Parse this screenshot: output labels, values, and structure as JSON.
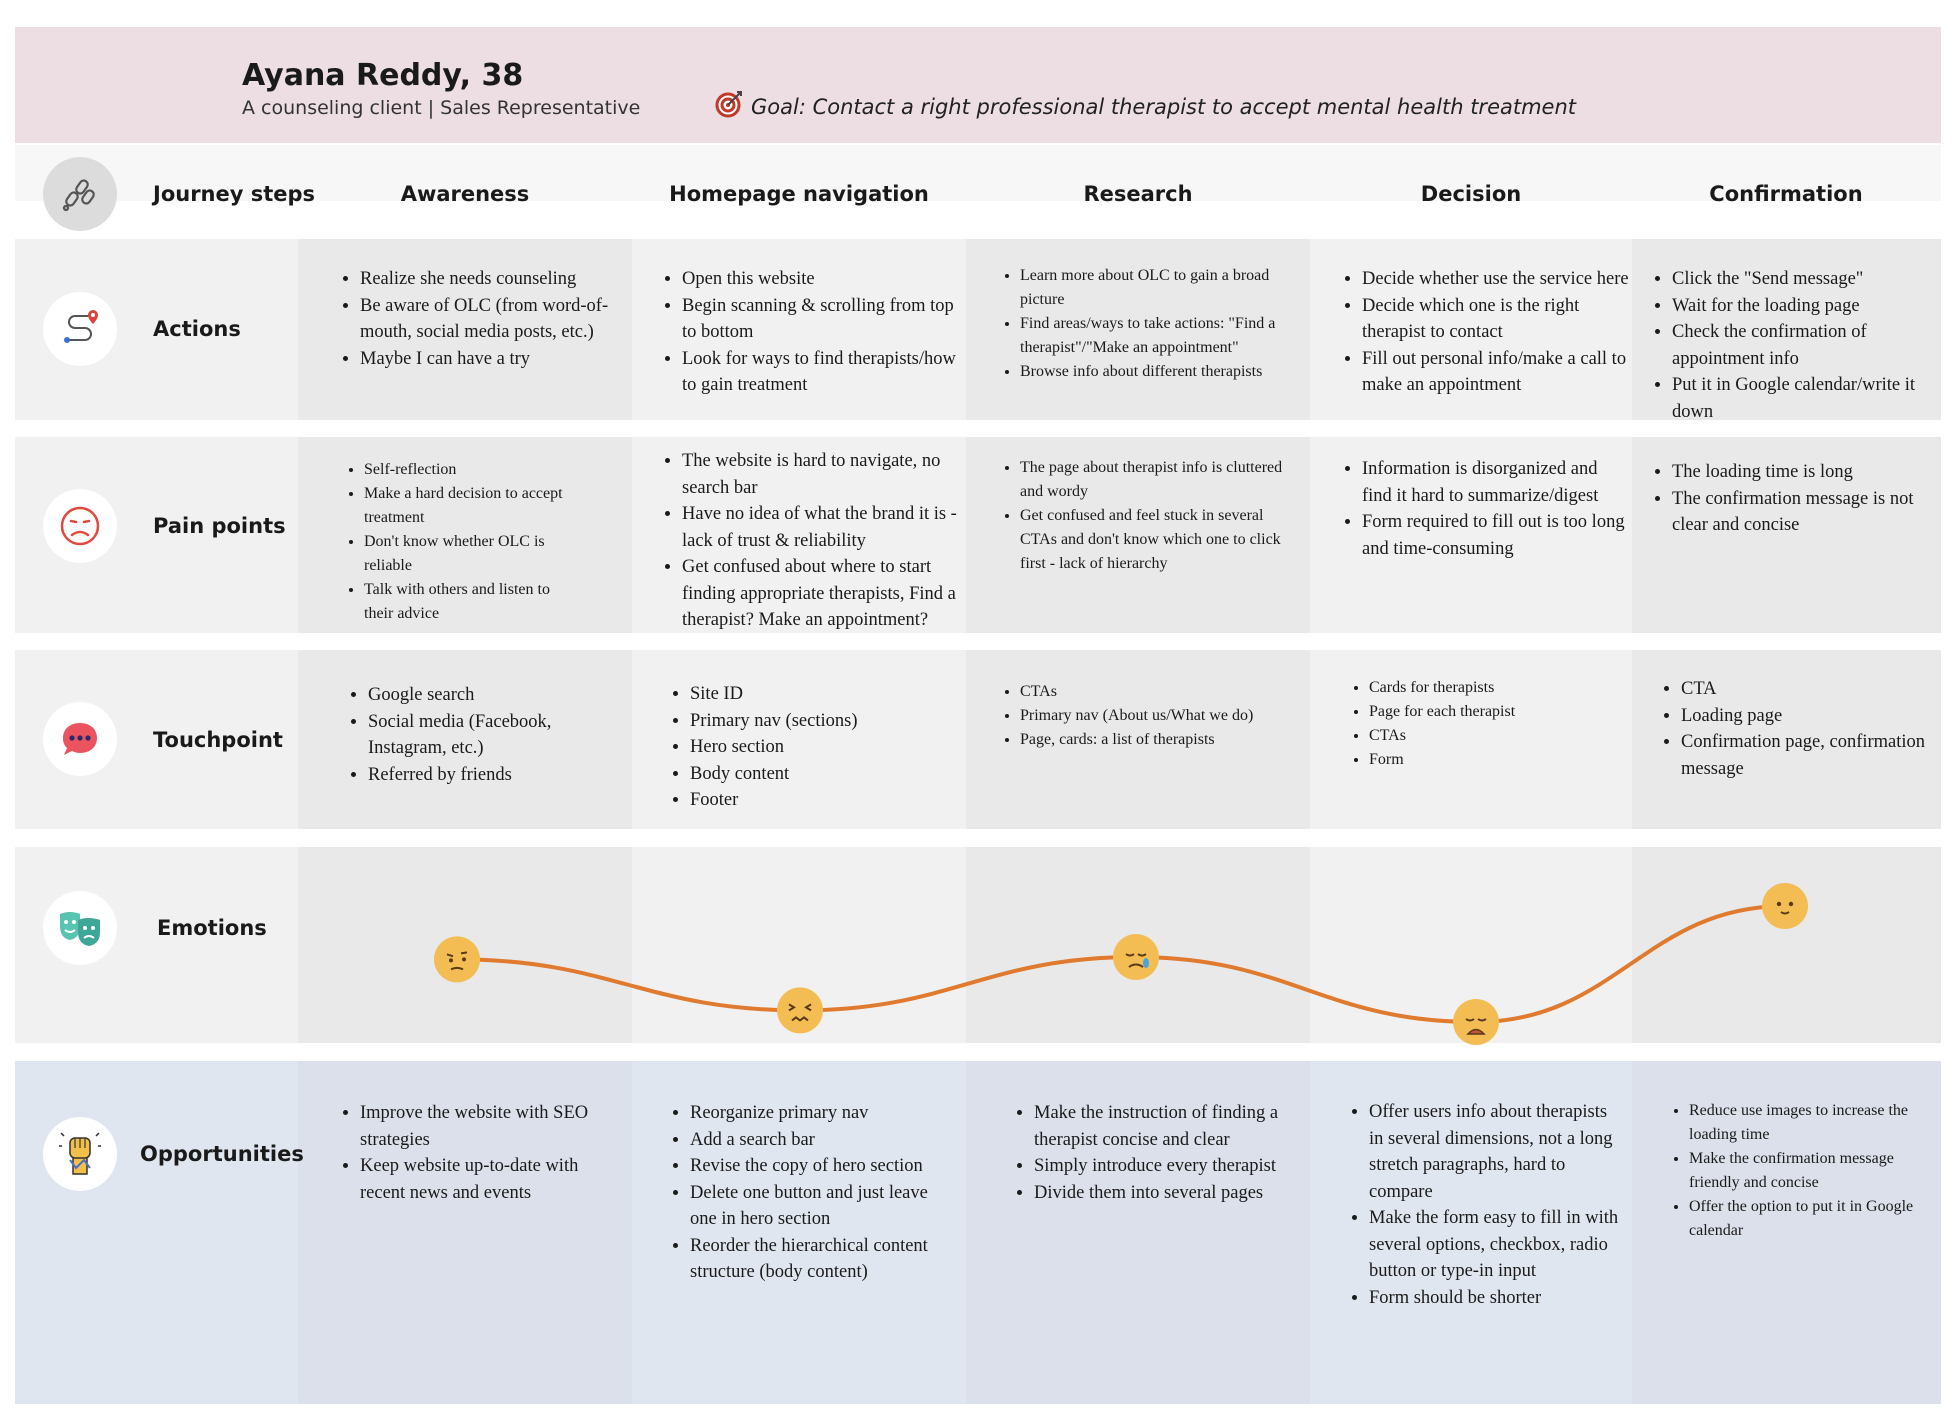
{
  "persona": {
    "name": "Ayana Reddy, 38",
    "subtitle": "A counseling client | Sales Representative",
    "goal": "Goal: Contact a right professional therapist to accept mental health treatment"
  },
  "journey": {
    "row_label": "Journey steps",
    "steps": [
      "Awareness",
      "Homepage navigation",
      "Research",
      "Decision",
      "Confirmation"
    ]
  },
  "rows": {
    "actions": {
      "label": "Actions",
      "cells": [
        [
          "Realize she needs counseling",
          "Be aware of OLC (from word-of-mouth, social media posts, etc.)",
          "Maybe I can have a try"
        ],
        [
          "Open this website",
          "Begin scanning & scrolling from top to bottom",
          "Look for ways to find therapists/how to gain treatment"
        ],
        [
          "Learn more about OLC to gain a broad picture",
          "Find areas/ways to take actions: \"Find a therapist\"/\"Make an appointment\"",
          "Browse info about different therapists"
        ],
        [
          "Decide whether use the service here",
          "Decide which one is the right therapist to contact",
          "Fill out personal info/make a call to make an appointment"
        ],
        [
          "Click the \"Send message\"",
          "Wait for the loading page",
          "Check the confirmation of appointment info",
          "Put it in Google calendar/write it down"
        ]
      ]
    },
    "pain_points": {
      "label": "Pain points",
      "cells": [
        [
          "Self-reflection",
          "Make a hard decision to accept treatment",
          "Don't know whether OLC is reliable",
          "Talk with others and listen to their advice"
        ],
        [
          "The website is hard to navigate, no search bar",
          "Have no idea of what the brand it is - lack of trust & reliability",
          "Get confused about where to start finding appropriate therapists, Find a therapist? Make an appointment?"
        ],
        [
          "The page about therapist info is cluttered and wordy",
          "Get confused and feel stuck in several CTAs and don't know which one to click first - lack of hierarchy"
        ],
        [
          "Information is disorganized and find it hard to summarize/digest",
          "Form required to fill out is too long and time-consuming"
        ],
        [
          "The loading time is long",
          "The confirmation message is not clear and concise"
        ]
      ]
    },
    "touchpoint": {
      "label": "Touchpoint",
      "cells": [
        [
          "Google search",
          "Social media (Facebook, Instagram, etc.)",
          "Referred by friends"
        ],
        [
          "Site ID",
          "Primary nav (sections)",
          "Hero section",
          "Body content",
          "Footer"
        ],
        [
          "CTAs",
          "Primary nav (About us/What we do)",
          "Page, cards: a list of therapists"
        ],
        [
          "Cards for therapists",
          "Page for each therapist",
          "CTAs",
          "Form"
        ],
        [
          "CTA",
          "Loading page",
          "Confirmation page, confirmation message"
        ]
      ]
    },
    "emotions": {
      "label": "Emotions"
    },
    "opportunities": {
      "label": "Opportunities",
      "cells": [
        [
          "Improve the website with SEO strategies",
          "Keep website up-to-date with recent news and events"
        ],
        [
          "Reorganize primary nav",
          "Add a search bar",
          "Revise the copy of hero section",
          "Delete one button and just leave one in hero section",
          "Reorder the hierarchical content structure (body content)"
        ],
        [
          "Make the instruction of finding a therapist concise and clear",
          "Simply introduce every therapist",
          "Divide them into several pages"
        ],
        [
          "Offer users info about therapists in several dimensions, not a long stretch paragraphs, hard to compare",
          "Make the form easy to fill in with several options, checkbox, radio button or type-in input",
          "Form should be shorter"
        ],
        [
          "Reduce use images to increase the loading time",
          "Make the confirmation message friendly and concise",
          "Offer the option to put it in Google calendar"
        ]
      ]
    }
  },
  "emotion_curve": {
    "stages": [
      "Awareness",
      "Homepage navigation",
      "Research",
      "Decision",
      "Confirmation"
    ],
    "levels": [
      0.54,
      0.1,
      0.56,
      0.0,
      1.0
    ],
    "moods": [
      "skeptical",
      "distressed",
      "sad-tear",
      "disappointed",
      "content"
    ],
    "line_color": "#e07a2f",
    "face_color": "#f3bd54"
  },
  "colors": {
    "header_bg": "#ecdee3",
    "actions_bg": "#f1f1f1",
    "pain_bg": "#f1f1f1",
    "touch_bg": "#f1f1f1",
    "emotion_bg": "#f1f1f1",
    "opportunity_bg": "#e0e6ef"
  }
}
